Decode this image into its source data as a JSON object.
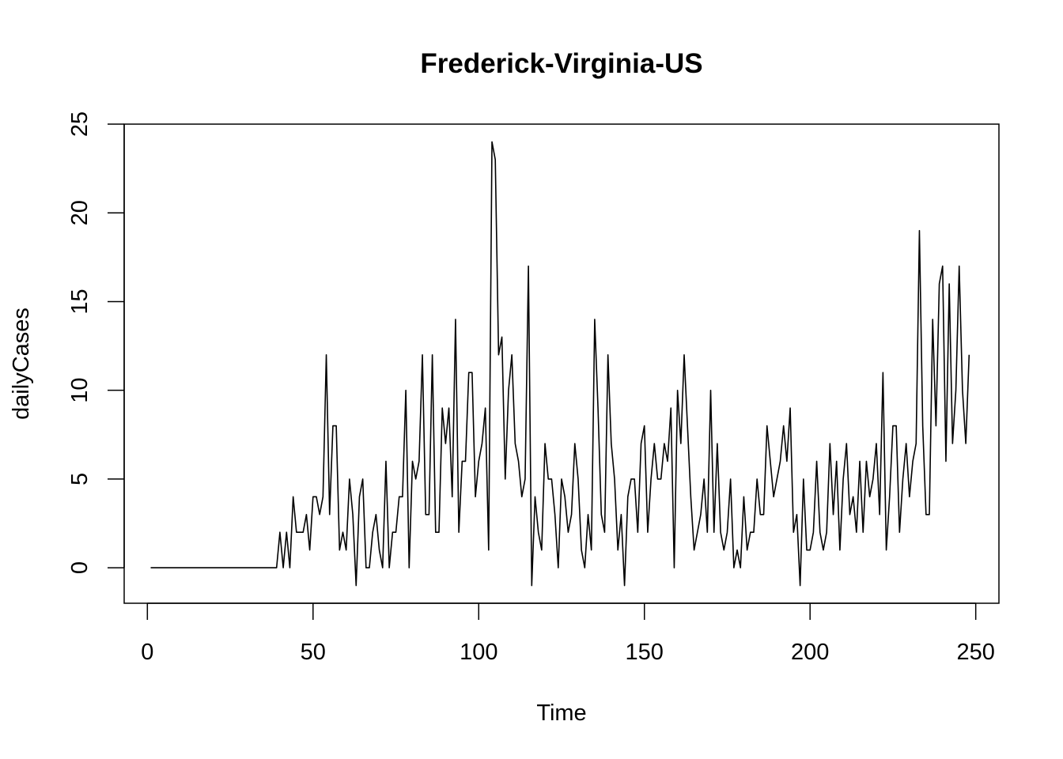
{
  "chart_data": {
    "type": "line",
    "title": "Frederick-Virginia-US",
    "xlabel": "Time",
    "ylabel": "dailyCases",
    "xlim": [
      -7,
      257
    ],
    "ylim": [
      -2,
      25
    ],
    "xticks": [
      0,
      50,
      100,
      150,
      200,
      250
    ],
    "yticks": [
      0,
      5,
      10,
      15,
      20,
      25
    ],
    "xtick_labels": [
      "0",
      "50",
      "100",
      "150",
      "200",
      "250"
    ],
    "ytick_labels": [
      "0",
      "5",
      "10",
      "15",
      "20",
      "25"
    ],
    "grid": false,
    "legend": "none",
    "line_color": "#000000",
    "series": [
      {
        "x_start": 1,
        "values": [
          0,
          0,
          0,
          0,
          0,
          0,
          0,
          0,
          0,
          0,
          0,
          0,
          0,
          0,
          0,
          0,
          0,
          0,
          0,
          0,
          0,
          0,
          0,
          0,
          0,
          0,
          0,
          0,
          0,
          0,
          0,
          0,
          0,
          0,
          0,
          0,
          0,
          0,
          0,
          2,
          0,
          2,
          0,
          4,
          2,
          2,
          2,
          3,
          1,
          4,
          4,
          3,
          4,
          12,
          3,
          8,
          8,
          1,
          2,
          1,
          5,
          3,
          -1,
          4,
          5,
          0,
          0,
          2,
          3,
          1,
          0,
          6,
          0,
          2,
          2,
          4,
          4,
          10,
          0,
          6,
          5,
          6,
          12,
          3,
          3,
          12,
          2,
          2,
          9,
          7,
          9,
          4,
          14,
          2,
          6,
          6,
          11,
          11,
          4,
          6,
          7,
          9,
          1,
          24,
          23,
          12,
          13,
          5,
          10,
          12,
          7,
          6,
          4,
          5,
          17,
          -1,
          4,
          2,
          1,
          7,
          5,
          5,
          3,
          0,
          5,
          4,
          2,
          3,
          7,
          5,
          1,
          0,
          3,
          1,
          14,
          9,
          3,
          2,
          12,
          7,
          5,
          1,
          3,
          -1,
          4,
          5,
          5,
          2,
          7,
          8,
          2,
          5,
          7,
          5,
          5,
          7,
          6,
          9,
          0,
          10,
          7,
          12,
          8,
          4,
          1,
          2,
          3,
          5,
          2,
          10,
          2,
          7,
          2,
          1,
          2,
          5,
          0,
          1,
          0,
          4,
          1,
          2,
          2,
          5,
          3,
          3,
          8,
          6,
          4,
          5,
          6,
          8,
          6,
          9,
          2,
          3,
          -1,
          5,
          1,
          1,
          2,
          6,
          2,
          1,
          2,
          7,
          3,
          6,
          1,
          5,
          7,
          3,
          4,
          2,
          6,
          2,
          6,
          4,
          5,
          7,
          3,
          11,
          1,
          4,
          8,
          8,
          2,
          5,
          7,
          4,
          6,
          7,
          19,
          8,
          3,
          3,
          14,
          8,
          16,
          17,
          6,
          16,
          7,
          10,
          17,
          10,
          7,
          12
        ]
      }
    ]
  }
}
